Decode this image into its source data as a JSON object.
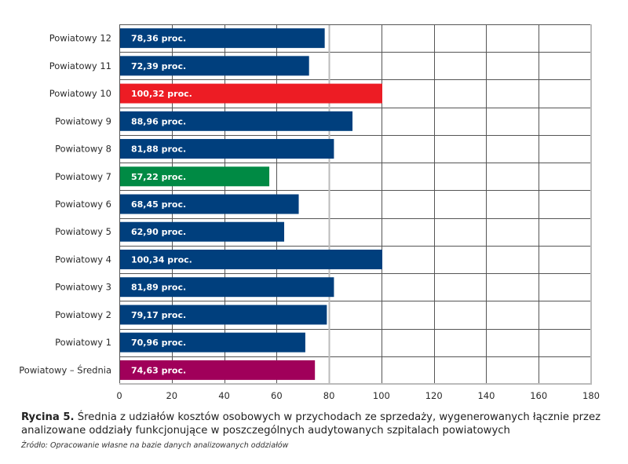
{
  "chart_data": {
    "type": "bar",
    "orientation": "horizontal",
    "categories": [
      "Powiatowy 12",
      "Powiatowy 11",
      "Powiatowy 10",
      "Powiatowy 9",
      "Powiatowy 8",
      "Powiatowy 7",
      "Powiatowy 6",
      "Powiatowy 5",
      "Powiatowy 4",
      "Powiatowy 3",
      "Powiatowy 2",
      "Powiatowy 1",
      "Powiatowy – Średnia"
    ],
    "values": [
      78.36,
      72.39,
      100.32,
      88.96,
      81.88,
      57.22,
      68.45,
      62.9,
      100.34,
      81.89,
      79.17,
      70.96,
      74.63
    ],
    "data_labels": [
      "78,36 proc.",
      "72,39 proc.",
      "100,32 proc.",
      "88,96 proc.",
      "81,88 proc.",
      "57,22 proc.",
      "68,45 proc.",
      "62,90 proc.",
      "100,34 proc.",
      "81,89 proc.",
      "79,17 proc.",
      "70,96 proc.",
      "74,63 proc."
    ],
    "bar_colors": [
      "#003f7d",
      "#003f7d",
      "#ed1c24",
      "#003f7d",
      "#003f7d",
      "#008a44",
      "#003f7d",
      "#003f7d",
      "#003f7d",
      "#003f7d",
      "#003f7d",
      "#003f7d",
      "#a0005a"
    ],
    "xlim": [
      0,
      180
    ],
    "xticks": [
      0,
      20,
      40,
      60,
      80,
      100,
      120,
      140,
      160,
      180
    ],
    "xtick_labels": [
      "0",
      "20",
      "40",
      "60",
      "80",
      "100",
      "120",
      "140",
      "160",
      "180"
    ],
    "title": "",
    "xlabel": "",
    "ylabel": "",
    "grid": true,
    "legend": "none"
  },
  "caption": {
    "figure_number": "Rycina 5.",
    "text": " Średnia z udziałów kosztów osobowych w przychodach ze sprzedaży, wygenerowanych łącznie przez analizowane oddziały funkcjonujące w poszczególnych audytowanych szpitalach powiatowych",
    "source": "Źródło: Opracowanie własne na bazie danych analizowanych oddziałów"
  }
}
